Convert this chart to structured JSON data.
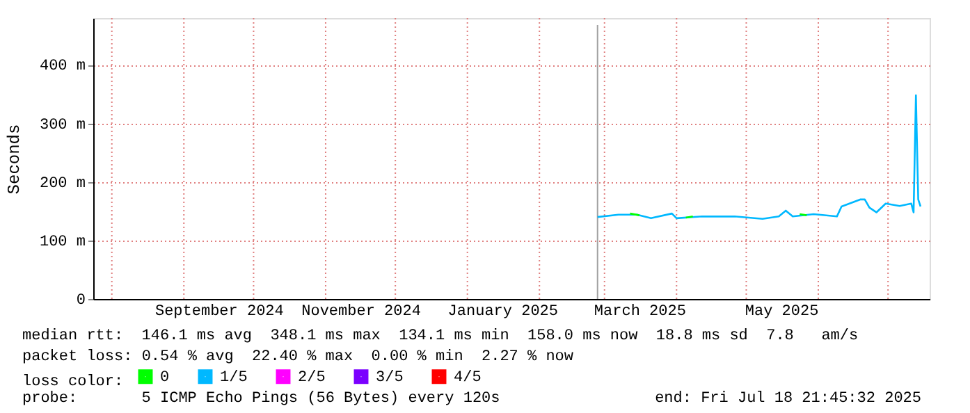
{
  "chart_data": {
    "type": "line",
    "ylabel": "Seconds",
    "xlim": [
      "2024-07-24",
      "2025-07-18T21:45"
    ],
    "xticks": [
      {
        "value": "2024-08-01",
        "label": null
      },
      {
        "value": "2024-09-01",
        "label": null
      },
      {
        "value": "2024-09-16",
        "label": "September 2024"
      },
      {
        "value": "2024-10-01",
        "label": null
      },
      {
        "value": "2024-11-01",
        "label": null
      },
      {
        "value": "2024-11-16",
        "label": "November 2024"
      },
      {
        "value": "2024-12-01",
        "label": null
      },
      {
        "value": "2025-01-01",
        "label": null
      },
      {
        "value": "2025-01-16",
        "label": "January 2025"
      },
      {
        "value": "2025-02-01",
        "label": null
      },
      {
        "value": "2025-03-01",
        "label": null
      },
      {
        "value": "2025-03-16",
        "label": "March 2025"
      },
      {
        "value": "2025-04-01",
        "label": null
      },
      {
        "value": "2025-05-01",
        "label": null
      },
      {
        "value": "2025-05-16",
        "label": "May 2025"
      },
      {
        "value": "2025-06-01",
        "label": null
      },
      {
        "value": "2025-07-01",
        "label": null
      }
    ],
    "ylim": [
      0,
      480
    ],
    "yticks": [
      0,
      {
        "value": 100,
        "label": "100 m"
      },
      {
        "value": 200,
        "label": "200 m"
      },
      {
        "value": 300,
        "label": "300 m"
      },
      {
        "value": 400,
        "label": "400 m"
      }
    ],
    "grid": true,
    "legend": "bottom",
    "legend_title": "loss color:",
    "line_style": "solid",
    "marker": "none",
    "ref_lines": [
      {
        "axis": "x",
        "value": "2025-02-26",
        "label": null,
        "color": "#a0a0a0"
      }
    ],
    "series": [
      {
        "name": "0",
        "color": "#00ff00",
        "x": [
          "2025-03-12",
          "2025-03-16",
          "2025-03-17",
          "2025-04-05",
          "2025-04-08",
          "2025-04-09",
          "2025-05-24",
          "2025-05-27"
        ],
        "values": [
          146,
          143,
          null,
          139,
          141,
          null,
          145,
          143
        ]
      },
      {
        "name": "1/5",
        "color": "#00b8ff",
        "x": [
          "2025-02-26",
          "2025-03-07",
          "2025-03-15",
          "2025-03-21",
          "2025-03-30",
          "2025-04-01",
          "2025-04-12",
          "2025-04-26",
          "2025-05-08",
          "2025-05-15",
          "2025-05-18",
          "2025-05-21",
          "2025-05-30",
          "2025-06-09",
          "2025-06-11",
          "2025-06-19",
          "2025-06-21",
          "2025-06-23",
          "2025-06-26",
          "2025-06-30",
          "2025-07-06",
          "2025-07-11",
          "2025-07-12",
          "2025-07-13",
          "2025-07-14",
          "2025-07-15"
        ],
        "values": [
          140,
          144,
          144,
          138,
          146,
          138,
          141,
          141,
          137,
          141,
          151,
          141,
          145,
          141,
          158,
          170,
          170,
          156,
          148,
          163,
          159,
          163,
          148,
          348,
          170,
          158
        ]
      },
      {
        "name": "2/5",
        "color": "#ff00ff"
      },
      {
        "name": "3/5",
        "color": "#7b00ff"
      },
      {
        "name": "4/5",
        "color": "#ff0000"
      }
    ],
    "annotations": [
      "median rtt:  146.1 ms avg  348.1 ms max  134.1 ms min  158.0 ms now  18.8 ms sd  7.8   am/s",
      "packet loss: 0.54 % avg  22.40 % max  0.00 % min  2.27 % now",
      "probe:       5 ICMP Echo Pings (56 Bytes) every 120s",
      "end: Fri Jul 18 21:45:32 2025"
    ]
  }
}
